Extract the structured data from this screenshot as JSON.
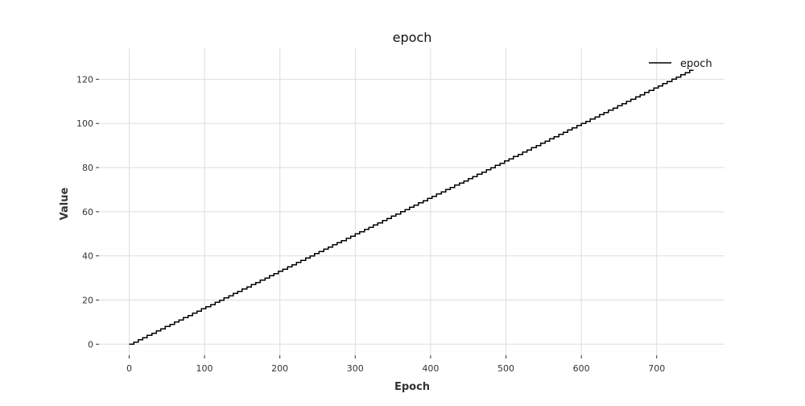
{
  "chart_data": {
    "type": "line",
    "title": "epoch",
    "xlabel": "Epoch",
    "ylabel": "Value",
    "xlim": [
      -40,
      790
    ],
    "ylim": [
      -5,
      134
    ],
    "xticks": [
      0,
      100,
      200,
      300,
      400,
      500,
      600,
      700
    ],
    "yticks": [
      0,
      20,
      40,
      60,
      80,
      100,
      120
    ],
    "grid": true,
    "legend": {
      "position": "top-right"
    },
    "series": [
      {
        "name": "epoch",
        "color": "#000000",
        "step": "post",
        "x": [
          0,
          749
        ],
        "y": [
          0,
          126
        ],
        "points_per_step": 6
      }
    ]
  }
}
